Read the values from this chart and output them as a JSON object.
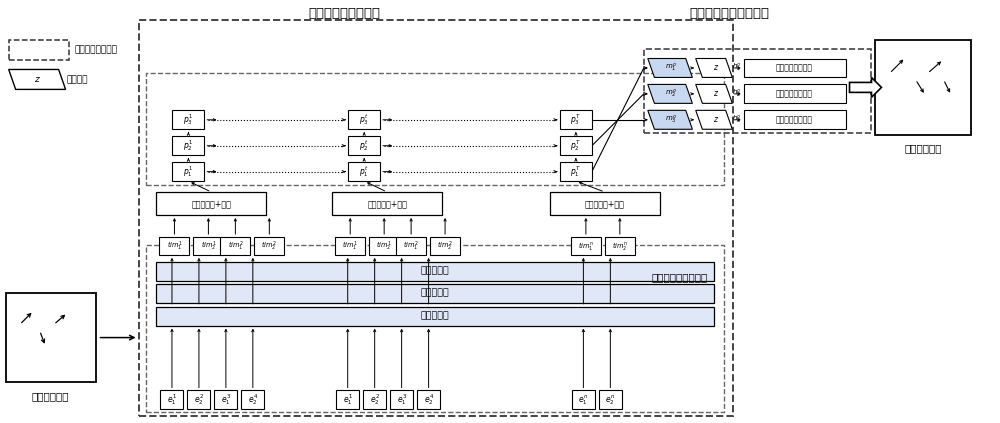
{
  "title_social": "社会注意力池化模块",
  "title_gate": "门控循环单元编码模块",
  "title_individual": "个体注意力编码模块",
  "label_input": "输入历史轨迹",
  "label_output": "输出未来轨迹",
  "legend_dashed": "池化门控循环单元",
  "legend_z": "高斯噪声",
  "social_attn_label": "社会注意力+池化",
  "individual_attn_label": "个体注意力",
  "decode_label": "解码门控循环单元",
  "bg_color": "#ffffff",
  "box_edge": "#000000",
  "light_blue_fill": "#c8d8f0",
  "dashed_box_color": "#555555",
  "arrow_color": "#000000"
}
